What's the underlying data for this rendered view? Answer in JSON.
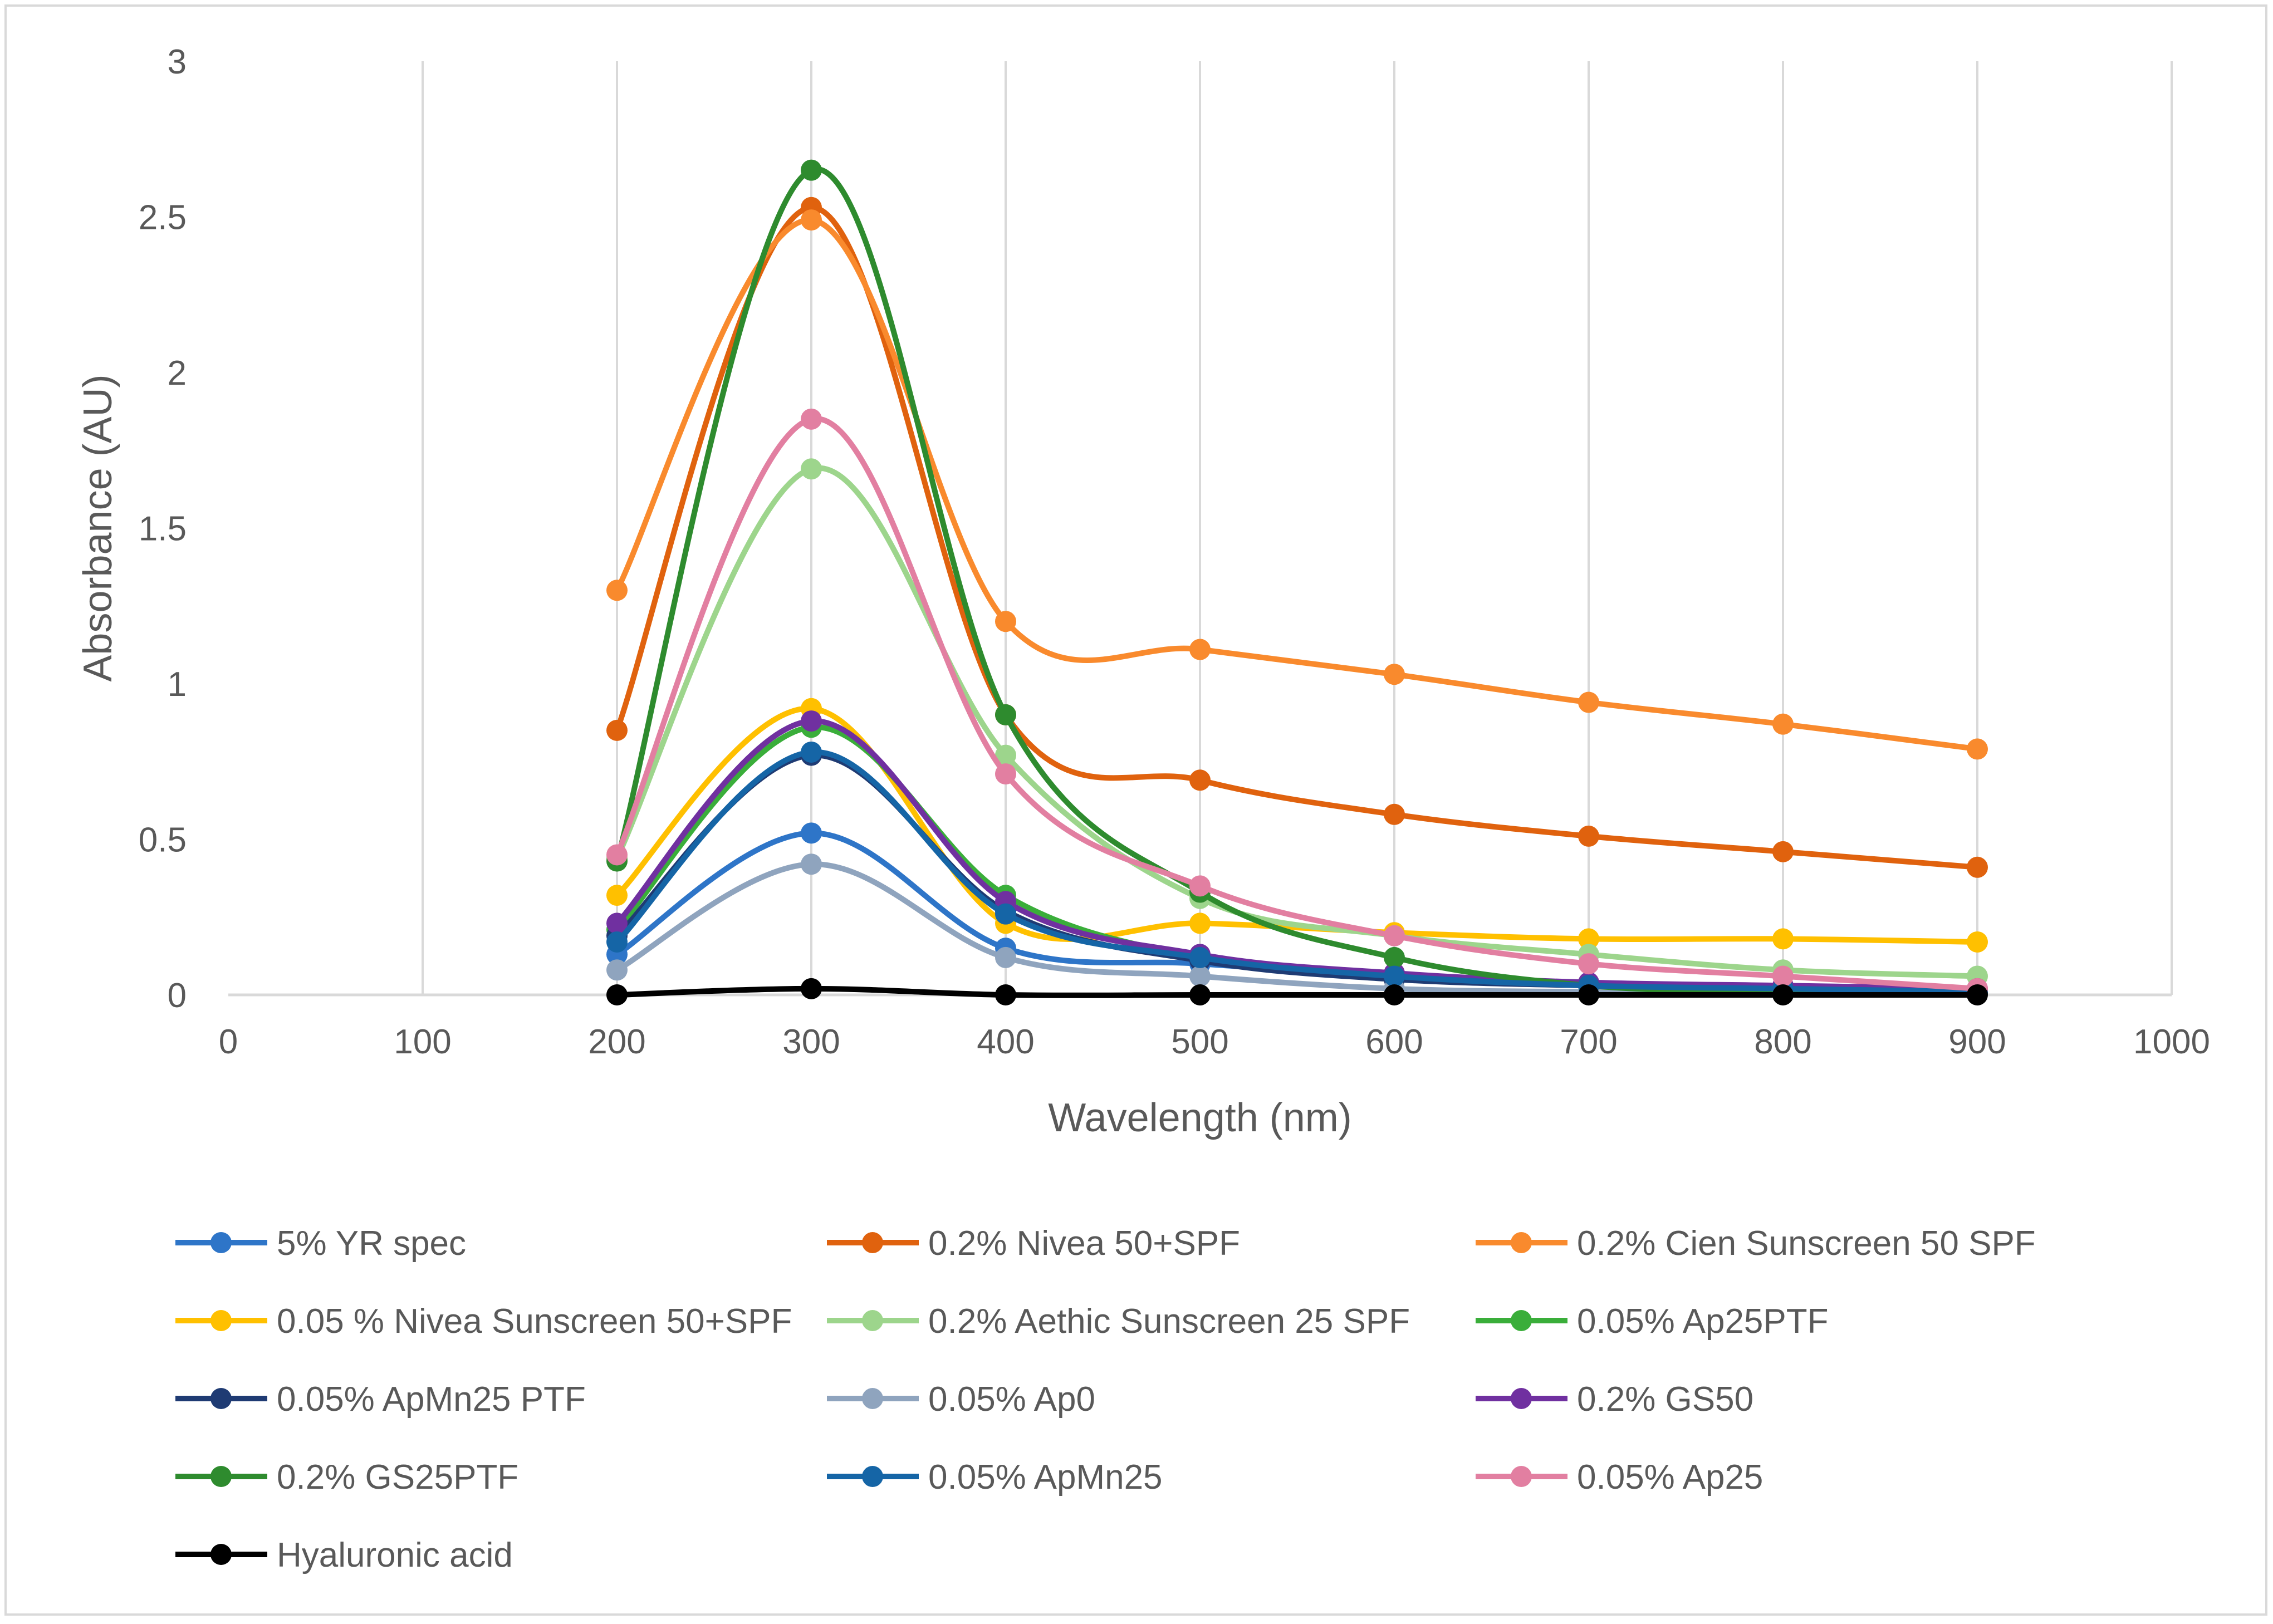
{
  "chart_data": {
    "type": "line",
    "title": "",
    "xlabel": "Wavelength (nm)",
    "ylabel": "Absorbance (AU)",
    "xlim": [
      0,
      1000
    ],
    "ylim": [
      0,
      3
    ],
    "x_ticks": [
      "0",
      "100",
      "200",
      "300",
      "400",
      "500",
      "600",
      "700",
      "800",
      "900",
      "1000"
    ],
    "y_ticks": [
      "0",
      "0.5",
      "1",
      "1.5",
      "2",
      "2.5",
      "3"
    ],
    "grid": "vertical",
    "legend_position": "bottom",
    "x": [
      200,
      300,
      400,
      500,
      600,
      700,
      800,
      900
    ],
    "series": [
      {
        "name": "5% YR spec",
        "color": "#2E75C8",
        "values": [
          0.13,
          0.52,
          0.15,
          0.1,
          0.06,
          0.03,
          0.02,
          0.01
        ]
      },
      {
        "name": "0.2% Nivea  50+SPF",
        "color": "#E0620E",
        "values": [
          0.85,
          2.53,
          0.9,
          0.69,
          0.58,
          0.51,
          0.46,
          0.41
        ]
      },
      {
        "name": "0.2% Cien Sunscreen 50 SPF",
        "color": "#F98A2D",
        "values": [
          1.3,
          2.49,
          1.2,
          1.11,
          1.03,
          0.94,
          0.87,
          0.79
        ]
      },
      {
        "name": "0.05 % Nivea Sunscreen 50+SPF",
        "color": "#FFC000",
        "values": [
          0.32,
          0.92,
          0.23,
          0.23,
          0.2,
          0.18,
          0.18,
          0.17
        ]
      },
      {
        "name": "0.2% Aethic Sunscreen 25 SPF",
        "color": "#9DD58C",
        "values": [
          0.44,
          1.69,
          0.77,
          0.31,
          0.19,
          0.13,
          0.08,
          0.06
        ]
      },
      {
        "name": "0.05% Ap25PTF",
        "color": "#3AAE3A",
        "values": [
          0.21,
          0.86,
          0.32,
          0.12,
          0.06,
          0.03,
          0.02,
          0.01
        ]
      },
      {
        "name": "0.05% ApMn25 PTF",
        "color": "#1F3B73",
        "values": [
          0.19,
          0.77,
          0.27,
          0.11,
          0.05,
          0.03,
          0.02,
          0.01
        ]
      },
      {
        "name": "0.05% Ap0",
        "color": "#8FA4BE",
        "values": [
          0.08,
          0.42,
          0.12,
          0.06,
          0.02,
          0.01,
          0.01,
          0.01
        ]
      },
      {
        "name": "0.2% GS50",
        "color": "#7030A0",
        "values": [
          0.23,
          0.88,
          0.3,
          0.13,
          0.07,
          0.04,
          0.03,
          0.02
        ]
      },
      {
        "name": "0.2% GS25PTF",
        "color": "#2E8B2E",
        "values": [
          0.43,
          2.65,
          0.9,
          0.33,
          0.12,
          0.03,
          0.01,
          0.01
        ]
      },
      {
        "name": "0.05% ApMn25",
        "color": "#1565A6",
        "values": [
          0.17,
          0.78,
          0.26,
          0.12,
          0.06,
          0.03,
          0.02,
          0.01
        ]
      },
      {
        "name": "0.05% Ap25",
        "color": "#E27FA1",
        "values": [
          0.45,
          1.85,
          0.71,
          0.35,
          0.19,
          0.1,
          0.06,
          0.02
        ]
      },
      {
        "name": "Hyaluronic acid",
        "color": "#000000",
        "values": [
          0.0,
          0.02,
          0.0,
          0.0,
          0.0,
          0.0,
          0.0,
          0.0
        ]
      }
    ]
  }
}
